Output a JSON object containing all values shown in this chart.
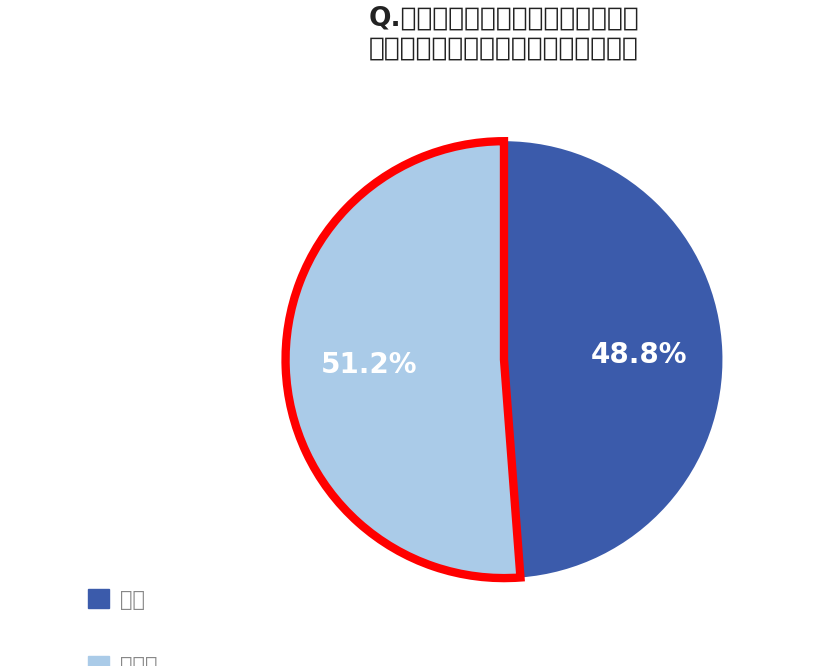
{
  "title_line1": "Q.自宅での防災対策の準備として、",
  "title_line2": "飲み物や食べ物を準備していますか。",
  "slices": [
    48.8,
    51.2
  ],
  "labels": [
    "48.8%",
    "51.2%"
  ],
  "colors": [
    "#3b5bab",
    "#aacbe8"
  ],
  "legend_labels": [
    "はい",
    "いいえ"
  ],
  "legend_colors": [
    "#3b5bab",
    "#aacbe8"
  ],
  "highlight_slice_index": 1,
  "highlight_color": "#ff0000",
  "highlight_linewidth": 6,
  "background_color": "#ffffff",
  "text_color": "#ffffff",
  "title_color": "#222222",
  "legend_text_color": "#888888",
  "title_fontsize": 19,
  "label_fontsize": 20,
  "legend_fontsize": 15
}
